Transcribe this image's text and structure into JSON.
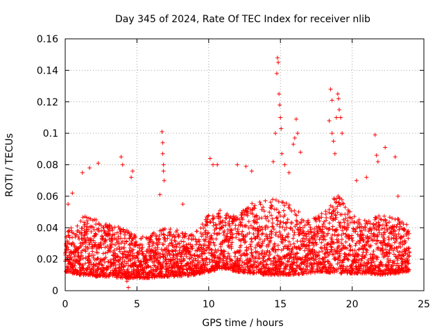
{
  "chart_data": {
    "type": "scatter",
    "title": "Day 345 of 2024, Rate Of TEC Index for receiver nlib",
    "xlabel": "GPS time / hours",
    "ylabel": "ROTI / TECUs",
    "xlim": [
      0,
      25
    ],
    "ylim": [
      0,
      0.16
    ],
    "x_ticks": [
      0,
      5,
      10,
      15,
      20,
      25
    ],
    "x_tick_labels": [
      "0",
      "5",
      "10",
      "15",
      "20",
      "25"
    ],
    "y_ticks": [
      0,
      0.02,
      0.04,
      0.06,
      0.08,
      0.1,
      0.12,
      0.14,
      0.16
    ],
    "y_tick_labels": [
      "0",
      "0.02",
      "0.04",
      "0.06",
      "0.08",
      "0.1",
      "0.12",
      "0.14",
      "0.16"
    ],
    "grid": true,
    "marker": "+",
    "color": "#ff0000",
    "x_data_range": [
      0,
      24
    ],
    "series": [
      {
        "name": "ROTI",
        "points": [
          [
            0.05,
            0.03
          ],
          [
            0.2,
            0.055
          ],
          [
            0.5,
            0.062
          ],
          [
            1.2,
            0.075
          ],
          [
            1.7,
            0.078
          ],
          [
            2.3,
            0.081
          ],
          [
            3.9,
            0.085
          ],
          [
            4.0,
            0.08
          ],
          [
            4.3,
            0.006
          ],
          [
            4.4,
            0.002
          ],
          [
            4.6,
            0.072
          ],
          [
            4.7,
            0.076
          ],
          [
            6.6,
            0.061
          ],
          [
            6.75,
            0.101
          ],
          [
            6.8,
            0.094
          ],
          [
            6.8,
            0.087
          ],
          [
            6.85,
            0.08
          ],
          [
            6.85,
            0.076
          ],
          [
            6.9,
            0.07
          ],
          [
            8.2,
            0.055
          ],
          [
            10.1,
            0.084
          ],
          [
            10.3,
            0.08
          ],
          [
            10.6,
            0.08
          ],
          [
            12.0,
            0.08
          ],
          [
            12.6,
            0.079
          ],
          [
            13.0,
            0.076
          ],
          [
            14.5,
            0.082
          ],
          [
            14.65,
            0.1
          ],
          [
            14.75,
            0.138
          ],
          [
            14.8,
            0.148
          ],
          [
            14.85,
            0.145
          ],
          [
            14.9,
            0.125
          ],
          [
            14.95,
            0.118
          ],
          [
            15.0,
            0.11
          ],
          [
            15.05,
            0.103
          ],
          [
            15.1,
            0.087
          ],
          [
            15.3,
            0.08
          ],
          [
            15.6,
            0.075
          ],
          [
            15.9,
            0.093
          ],
          [
            16.0,
            0.097
          ],
          [
            16.1,
            0.109
          ],
          [
            16.2,
            0.1
          ],
          [
            16.4,
            0.088
          ],
          [
            18.4,
            0.108
          ],
          [
            18.5,
            0.128
          ],
          [
            18.6,
            0.121
          ],
          [
            18.6,
            0.1
          ],
          [
            18.7,
            0.095
          ],
          [
            18.8,
            0.087
          ],
          [
            18.9,
            0.11
          ],
          [
            19.0,
            0.125
          ],
          [
            19.05,
            0.122
          ],
          [
            19.1,
            0.115
          ],
          [
            19.2,
            0.11
          ],
          [
            19.3,
            0.1
          ],
          [
            20.3,
            0.07
          ],
          [
            21.0,
            0.072
          ],
          [
            21.6,
            0.099
          ],
          [
            21.7,
            0.086
          ],
          [
            21.8,
            0.082
          ],
          [
            22.3,
            0.091
          ],
          [
            23.0,
            0.085
          ],
          [
            23.2,
            0.06
          ],
          [
            23.8,
            0.042
          ]
        ]
      }
    ],
    "envelope": {
      "description_hours": [
        0,
        1,
        2,
        3,
        4,
        5,
        6,
        7,
        8,
        9,
        10,
        11,
        12,
        13,
        14,
        15,
        16,
        17,
        18,
        19,
        20,
        21,
        22,
        23,
        24
      ],
      "base_low": [
        0.012,
        0.01,
        0.009,
        0.009,
        0.008,
        0.008,
        0.008,
        0.009,
        0.009,
        0.01,
        0.012,
        0.014,
        0.012,
        0.011,
        0.01,
        0.01,
        0.01,
        0.011,
        0.012,
        0.011,
        0.011,
        0.011,
        0.01,
        0.011,
        0.012
      ],
      "base_high": [
        0.035,
        0.048,
        0.046,
        0.042,
        0.04,
        0.036,
        0.036,
        0.04,
        0.038,
        0.036,
        0.05,
        0.052,
        0.048,
        0.056,
        0.058,
        0.06,
        0.052,
        0.045,
        0.05,
        0.062,
        0.048,
        0.045,
        0.048,
        0.048,
        0.04
      ]
    }
  }
}
